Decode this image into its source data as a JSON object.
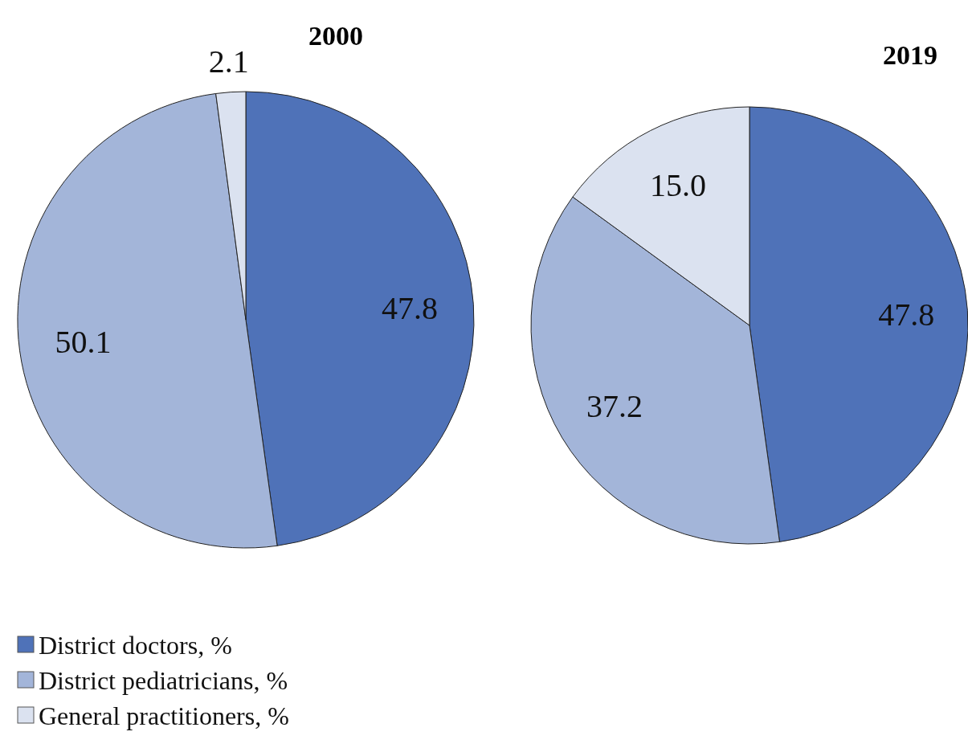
{
  "chart_data": [
    {
      "type": "pie",
      "title": "2000",
      "categories": [
        "District doctors, %",
        "District pediatricians, %",
        "General practitioners, %"
      ],
      "values": [
        47.8,
        50.1,
        2.1
      ],
      "colors": [
        "#4f72b8",
        "#a3b5d9",
        "#dbe2f0"
      ],
      "value_labels": [
        "47.8",
        "50.1",
        "2.1"
      ],
      "legend": "bottom left"
    },
    {
      "type": "pie",
      "title": "2019",
      "categories": [
        null,
        null,
        null
      ],
      "values": [
        47.8,
        37.2,
        15.0
      ],
      "colors": [
        "#4f72b8",
        "#a3b5d9",
        "#dbe2f0"
      ],
      "value_labels": [
        "47.8",
        "37.2",
        "15.0"
      ]
    }
  ]
}
